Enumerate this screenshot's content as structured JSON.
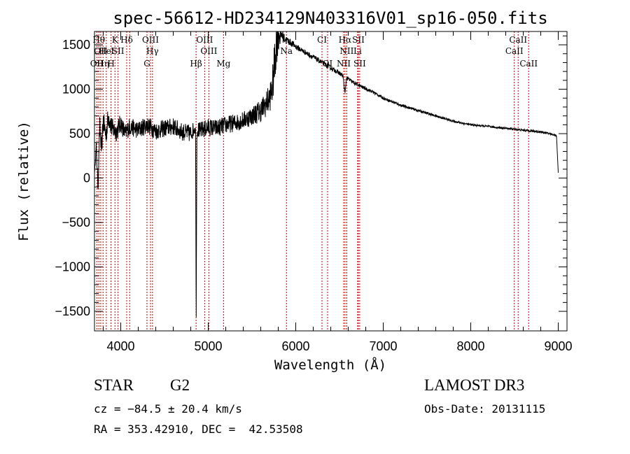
{
  "chart_data": {
    "type": "line",
    "title": "spec-56612-HD234129N403316V01_sp16-050.fits",
    "xlabel": "Wavelength (Å)",
    "ylabel": "Flux (relative)",
    "xlim": [
      3700,
      9100
    ],
    "ylim": [
      -1720,
      1650
    ],
    "xticks": [
      4000,
      5000,
      6000,
      7000,
      8000,
      9000
    ],
    "xtick_labels": [
      "4000",
      "5000",
      "6000",
      "7000",
      "8000",
      "9000"
    ],
    "yticks": [
      -1500,
      -1000,
      -500,
      0,
      500,
      1000,
      1500
    ],
    "ytick_labels": [
      "−1500",
      "−1000",
      "−500",
      "0",
      "500",
      "1000",
      "1500"
    ],
    "grid": false,
    "series": [
      {
        "name": "spectrum",
        "x": [
          3700,
          3720,
          3740,
          3760,
          3780,
          3800,
          3830,
          3860,
          3900,
          3950,
          4000,
          4050,
          4100,
          4200,
          4300,
          4400,
          4500,
          4600,
          4700,
          4800,
          4840,
          4855,
          4862,
          4870,
          4880,
          4900,
          5000,
          5100,
          5200,
          5300,
          5400,
          5500,
          5600,
          5650,
          5700,
          5730,
          5760,
          5780,
          5800,
          5820,
          5840,
          5860,
          5880,
          5900,
          5950,
          6000,
          6100,
          6200,
          6300,
          6400,
          6500,
          6540,
          6563,
          6580,
          6650,
          6750,
          6900,
          7000,
          7200,
          7400,
          7600,
          7800,
          8000,
          8200,
          8400,
          8500,
          8600,
          8700,
          8800,
          8900,
          8980,
          9000
        ],
        "y": [
          50,
          350,
          -100,
          600,
          300,
          650,
          480,
          700,
          560,
          520,
          620,
          500,
          580,
          540,
          600,
          530,
          560,
          580,
          520,
          500,
          560,
          540,
          -1700,
          500,
          550,
          530,
          570,
          560,
          600,
          620,
          650,
          700,
          760,
          820,
          900,
          1000,
          1300,
          1550,
          1650,
          1600,
          1620,
          1580,
          1560,
          1550,
          1520,
          1480,
          1420,
          1360,
          1300,
          1240,
          1180,
          1150,
          950,
          1130,
          1080,
          1030,
          960,
          900,
          820,
          760,
          700,
          640,
          600,
          580,
          560,
          550,
          540,
          530,
          520,
          500,
          480,
          60
        ],
        "noise": [
          0,
          60,
          80,
          100,
          110,
          120,
          130,
          140,
          120,
          110,
          110,
          100,
          100,
          100,
          100,
          100,
          100,
          100,
          100,
          100,
          80,
          40,
          0,
          60,
          90,
          100,
          100,
          100,
          100,
          100,
          100,
          110,
          130,
          140,
          160,
          200,
          260,
          280,
          250,
          120,
          80,
          60,
          50,
          45,
          40,
          35,
          30,
          30,
          28,
          26,
          25,
          25,
          10,
          25,
          22,
          20,
          18,
          16,
          15,
          14,
          13,
          12,
          12,
          12,
          12,
          12,
          12,
          12,
          12,
          12,
          12,
          0
        ]
      }
    ],
    "lines": [
      {
        "x": 3727,
        "label": "OII",
        "row": 3
      },
      {
        "x": 3750,
        "label": "Hθ",
        "row": 1
      },
      {
        "x": 3771,
        "label": "OII",
        "row": 2
      },
      {
        "x": 3798,
        "label": "Hη",
        "row": 3
      },
      {
        "x": 3835,
        "label": "Hel",
        "row": 2
      },
      {
        "x": 3889,
        "label": "H",
        "row": 3
      },
      {
        "x": 3934,
        "label": "K",
        "row": 1
      },
      {
        "x": 3969,
        "label": "SII",
        "row": 2
      },
      {
        "x": 4068,
        "label": "Hδ",
        "row": 1
      },
      {
        "x": 4102,
        "label": "",
        "row": 0
      },
      {
        "x": 4300,
        "label": "G",
        "row": 3
      },
      {
        "x": 4340,
        "label": "OIII",
        "row": 1
      },
      {
        "x": 4363,
        "label": "Hγ",
        "row": 2
      },
      {
        "x": 4861,
        "label": "Hβ",
        "row": 3
      },
      {
        "x": 4959,
        "label": "OIII",
        "row": 1
      },
      {
        "x": 5007,
        "label": "OIII",
        "row": 2
      },
      {
        "x": 5175,
        "label": "Mg",
        "row": 3
      },
      {
        "x": 5894,
        "label": "Na",
        "row": 2
      },
      {
        "x": 6300,
        "label": "CI",
        "row": 1
      },
      {
        "x": 6364,
        "label": "OI",
        "row": 3
      },
      {
        "x": 6548,
        "label": "NII",
        "row": 3
      },
      {
        "x": 6563,
        "label": "Hα",
        "row": 1
      },
      {
        "x": 6583,
        "label": "NII",
        "row": 2
      },
      {
        "x": 6707,
        "label": "Li",
        "row": 2
      },
      {
        "x": 6716,
        "label": "SII",
        "row": 1
      },
      {
        "x": 6731,
        "label": "SII",
        "row": 3
      },
      {
        "x": 8498,
        "label": "CaII",
        "row": 2
      },
      {
        "x": 8542,
        "label": "CaII",
        "row": 1
      },
      {
        "x": 8662,
        "label": "CaII",
        "row": 3
      }
    ]
  },
  "info": {
    "object_class": "STAR",
    "subclass": "G2",
    "survey": "LAMOST DR3",
    "redshift": "cz = −84.5 ± 20.4 km/s",
    "obs_date": "Obs-Date: 20131115",
    "coords": "RA = 353.42910, DEC =  42.53508"
  }
}
